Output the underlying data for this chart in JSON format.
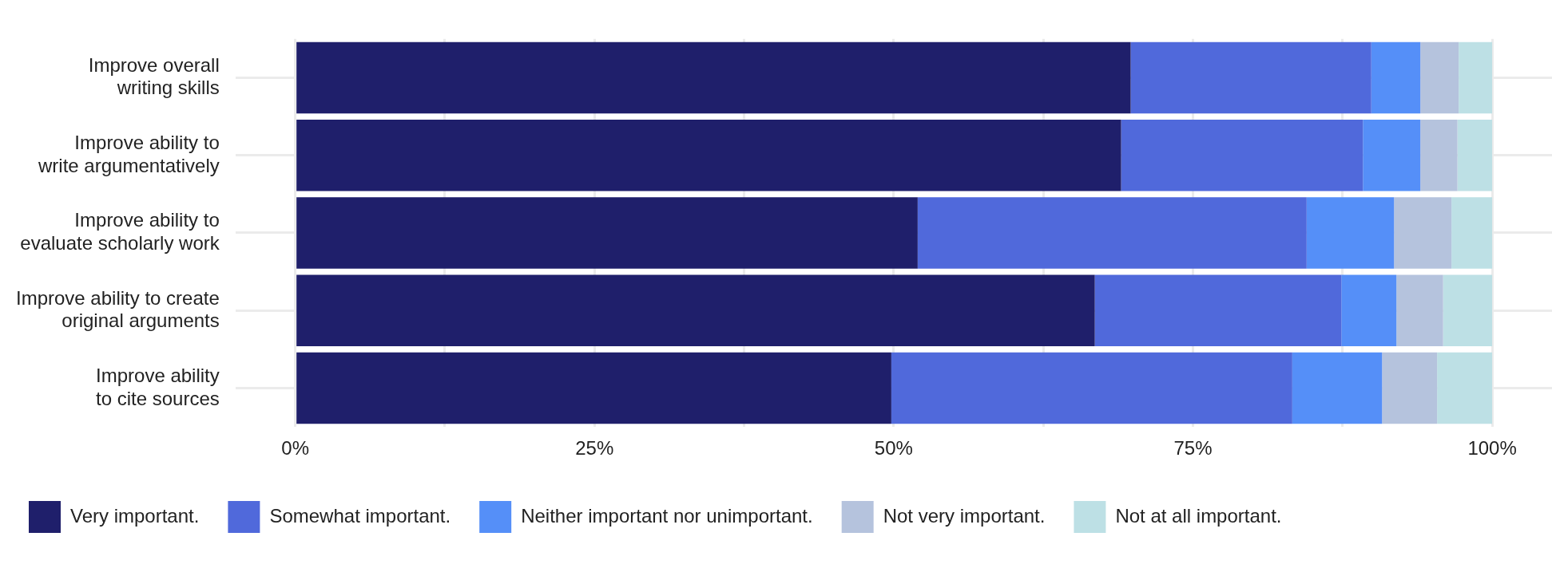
{
  "chart_data": {
    "type": "bar",
    "orientation": "horizontal",
    "stacked": true,
    "categories": [
      "Improve overall writing skills",
      "Improve ability to write argumentatively",
      "Improve ability to evaluate scholarly work",
      "Improve ability to create original arguments",
      "Improve ability to cite sources"
    ],
    "series": [
      {
        "name": "Very important.",
        "color": "#1f1f6b",
        "values": [
          69.8,
          69.0,
          52.0,
          66.8,
          49.8
        ]
      },
      {
        "name": "Somewhat important.",
        "color": "#5069db",
        "values": [
          20.1,
          20.2,
          32.5,
          20.6,
          33.5
        ]
      },
      {
        "name": "Neither important nor unimportant.",
        "color": "#558ff8",
        "values": [
          4.1,
          4.8,
          7.3,
          4.6,
          7.5
        ]
      },
      {
        "name": "Not very important.",
        "color": "#b5c3dd",
        "values": [
          3.2,
          3.1,
          4.8,
          3.9,
          4.6
        ]
      },
      {
        "name": "Not at all important.",
        "color": "#bde0e5",
        "values": [
          2.8,
          2.9,
          3.4,
          4.1,
          4.6
        ]
      }
    ],
    "xlim": [
      -5,
      105
    ],
    "xticks": [
      {
        "value": 0,
        "label": "0%"
      },
      {
        "value": 12.5,
        "label": null
      },
      {
        "value": 25,
        "label": "25%"
      },
      {
        "value": 37.5,
        "label": null
      },
      {
        "value": 50,
        "label": "50%"
      },
      {
        "value": 62.5,
        "label": null
      },
      {
        "value": 75,
        "label": "75%"
      },
      {
        "value": 87.5,
        "label": null
      },
      {
        "value": 100,
        "label": "100%"
      }
    ],
    "grid": true,
    "legend": "bottom"
  }
}
